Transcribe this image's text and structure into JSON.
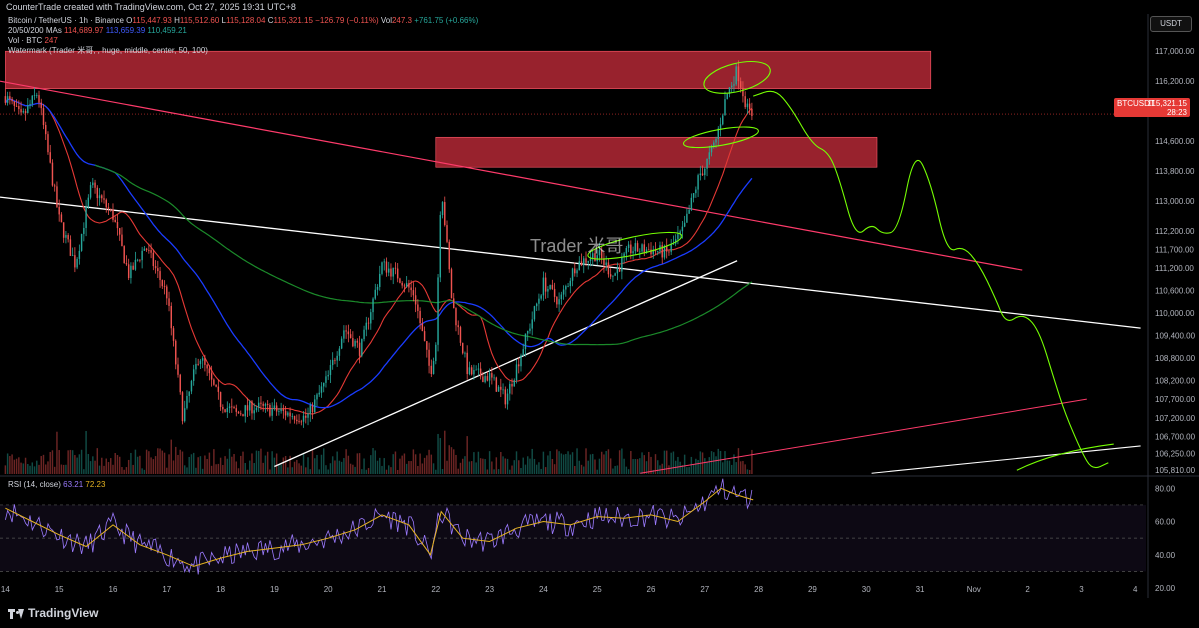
{
  "header": {
    "created_by": "CounterTrade created with TradingView.com, Oct 27, 2025 19:31 UTC+8"
  },
  "legend": {
    "symbol": "Bitcoin / TetherUS · 1h · Binance",
    "o_label": "O",
    "o": "115,447.93",
    "h_label": "H",
    "h": "115,512.60",
    "l_label": "L",
    "l": "115,128.04",
    "c_label": "C",
    "c": "115,321.15",
    "change": "−126.79 (−0.11%)",
    "vol_label": "Vol",
    "vol": "247.3",
    "delta": "+761.75 (+0.66%)",
    "ma_label": "20/50/200 MAs",
    "ma1": "114,689.97",
    "ma2": "113,659.39",
    "ma3": "110,459.21",
    "vol_btc_label": "Vol · BTC",
    "vol_btc": "247",
    "watermark_line": "Watermark (Trader 米哥, , huge, middle, center, 50, 100)"
  },
  "currency_badge": "USDT",
  "price_tag": {
    "symbol": "BTCUSDT",
    "price": "115,321.15",
    "countdown": "28:23"
  },
  "watermark": "Trader 米哥",
  "rsi_label": "RSI (14, close)",
  "rsi_value1": "63.21",
  "rsi_value2": "72.23",
  "footer_logo": "TradingView",
  "colors": {
    "bull": "#26a69a",
    "bear": "#ef5350",
    "zone": "#d32f3f",
    "ma_red": "#e53935",
    "ma_blue": "#1a3cff",
    "ma_green": "#1b8a2a",
    "projection": "#76ff03",
    "trend_white": "#ffffff",
    "trend_pink": "#ff3b6b"
  },
  "chart_data": {
    "type": "candlestick",
    "price_ticks": [
      "117,000.00",
      "116,200.00",
      "114,600.00",
      "113,800.00",
      "113,000.00",
      "112,200.00",
      "111,700.00",
      "111,200.00",
      "110,600.00",
      "110,000.00",
      "109,400.00",
      "108,800.00",
      "108,200.00",
      "107,700.00",
      "107,200.00",
      "106,700.00",
      "106,250.00",
      "105,810.00"
    ],
    "price_tick_values": [
      117000,
      116200,
      114600,
      113800,
      113000,
      112200,
      111700,
      111200,
      110600,
      110000,
      109400,
      108800,
      108200,
      107700,
      107200,
      106700,
      106250,
      105810
    ],
    "time_ticks": [
      "14",
      "15",
      "16",
      "17",
      "18",
      "19",
      "20",
      "21",
      "22",
      "23",
      "24",
      "25",
      "26",
      "27",
      "28",
      "29",
      "30",
      "31",
      "Nov",
      "2",
      "3",
      "4"
    ],
    "rsi_ticks": [
      "80.00",
      "60.00",
      "40.00",
      "20.00"
    ],
    "rsi_tick_values": [
      80,
      60,
      40,
      20
    ],
    "resistance_zones": [
      {
        "from": 116000,
        "to": 117000,
        "start_day": 14,
        "end_day": 31.2
      },
      {
        "from": 113900,
        "to": 114700,
        "start_day": 22,
        "end_day": 30.2
      }
    ],
    "price_path": [
      [
        14,
        115800
      ],
      [
        14.3,
        115200
      ],
      [
        14.6,
        115900
      ],
      [
        15,
        112500
      ],
      [
        15.3,
        111300
      ],
      [
        15.6,
        113400
      ],
      [
        16,
        112600
      ],
      [
        16.3,
        111000
      ],
      [
        16.6,
        111800
      ],
      [
        17,
        110500
      ],
      [
        17.3,
        107200
      ],
      [
        17.6,
        108900
      ],
      [
        18,
        107600
      ],
      [
        18.3,
        107300
      ],
      [
        18.6,
        107500
      ],
      [
        19,
        107400
      ],
      [
        19.3,
        107300
      ],
      [
        19.6,
        107200
      ],
      [
        20,
        108300
      ],
      [
        20.3,
        109600
      ],
      [
        20.6,
        109000
      ],
      [
        21,
        111300
      ],
      [
        21.3,
        111000
      ],
      [
        21.6,
        110500
      ],
      [
        21.9,
        108400
      ],
      [
        22,
        109200
      ],
      [
        22.1,
        113500
      ],
      [
        22.3,
        110300
      ],
      [
        22.6,
        108400
      ],
      [
        23,
        108300
      ],
      [
        23.3,
        107700
      ],
      [
        23.6,
        109000
      ],
      [
        24,
        110800
      ],
      [
        24.3,
        110300
      ],
      [
        24.6,
        111300
      ],
      [
        25,
        111600
      ],
      [
        25.3,
        111000
      ],
      [
        25.6,
        111700
      ],
      [
        26,
        111700
      ],
      [
        26.3,
        111600
      ],
      [
        26.6,
        112200
      ],
      [
        26.9,
        113700
      ],
      [
        27,
        113900
      ],
      [
        27.2,
        114600
      ],
      [
        27.4,
        115800
      ],
      [
        27.6,
        116500
      ],
      [
        27.8,
        115400
      ],
      [
        27.9,
        115300
      ]
    ],
    "projection_path": [
      [
        27.9,
        115800
      ],
      [
        28.3,
        116000
      ],
      [
        28.6,
        115500
      ],
      [
        29,
        114500
      ],
      [
        29.3,
        114300
      ],
      [
        29.5,
        113600
      ],
      [
        29.8,
        112000
      ],
      [
        30.1,
        112400
      ],
      [
        30.3,
        112100
      ],
      [
        30.6,
        112200
      ],
      [
        30.9,
        114400
      ],
      [
        31.2,
        113500
      ],
      [
        31.5,
        111600
      ],
      [
        31.8,
        111800
      ],
      [
        32.1,
        111300
      ],
      [
        32.4,
        110400
      ],
      [
        32.6,
        109700
      ],
      [
        32.9,
        110000
      ],
      [
        33.2,
        109600
      ],
      [
        33.5,
        108200
      ],
      [
        33.7,
        107300
      ],
      [
        34,
        106300
      ],
      [
        34.2,
        105800
      ],
      [
        34.5,
        106000
      ]
    ],
    "rsi_path": [
      [
        14,
        68
      ],
      [
        14.5,
        60
      ],
      [
        15,
        52
      ],
      [
        15.5,
        45
      ],
      [
        16,
        58
      ],
      [
        16.5,
        46
      ],
      [
        17,
        40
      ],
      [
        17.5,
        33
      ],
      [
        18,
        38
      ],
      [
        18.5,
        42
      ],
      [
        19,
        44
      ],
      [
        19.5,
        46
      ],
      [
        20,
        50
      ],
      [
        20.5,
        55
      ],
      [
        21,
        64
      ],
      [
        21.5,
        58
      ],
      [
        21.9,
        40
      ],
      [
        22.1,
        66
      ],
      [
        22.5,
        50
      ],
      [
        23,
        48
      ],
      [
        23.5,
        56
      ],
      [
        24,
        60
      ],
      [
        24.5,
        58
      ],
      [
        25,
        63
      ],
      [
        25.5,
        62
      ],
      [
        26,
        64
      ],
      [
        26.5,
        60
      ],
      [
        27,
        72
      ],
      [
        27.3,
        80
      ],
      [
        27.6,
        76
      ],
      [
        27.9,
        73
      ]
    ],
    "ylim": [
      105700,
      117300
    ],
    "rsi_ylim": [
      20,
      85
    ]
  }
}
